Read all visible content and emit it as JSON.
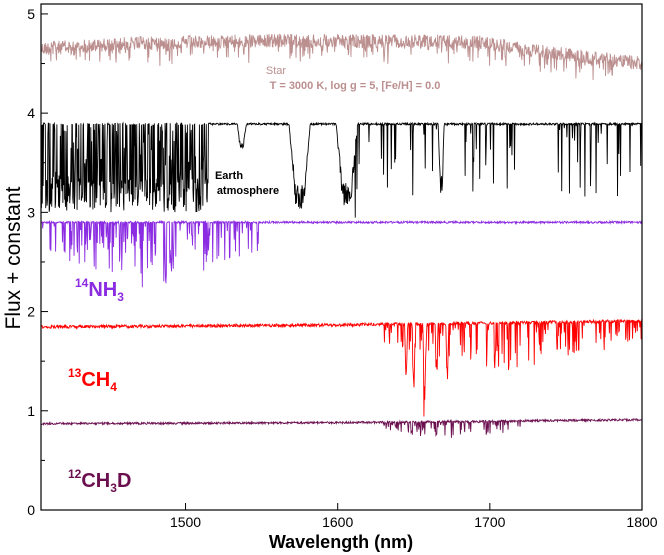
{
  "chart_data": {
    "type": "line",
    "title": "",
    "xlabel": "Wavelength (nm)",
    "ylabel": "Flux + constant",
    "xlim": [
      1405,
      1800
    ],
    "ylim": [
      0,
      5.1
    ],
    "x_ticks": [
      1500,
      1600,
      1700,
      1800
    ],
    "y_ticks": [
      0,
      1,
      2,
      3,
      4,
      5
    ],
    "grid": false,
    "series": [
      {
        "name": "Star",
        "label_line2": "T = 3000 K, log g = 5, [Fe/H] = 0.0",
        "color": "#bc8f8f",
        "baseline": [
          [
            1405,
            4.72
          ],
          [
            1460,
            4.77
          ],
          [
            1560,
            4.8
          ],
          [
            1690,
            4.79
          ],
          [
            1740,
            4.68
          ],
          [
            1800,
            4.57
          ]
        ],
        "spread": 0.14,
        "absorption": []
      },
      {
        "name": "Earth atmosphere",
        "label_top": "Earth",
        "label_bottom": "atmosphere",
        "color": "#000000",
        "baseline": [
          [
            1405,
            3.9
          ],
          [
            1800,
            3.9
          ]
        ],
        "spread": 0.02,
        "absorption": [
          {
            "center": 1575,
            "width": 7,
            "depth": 0.85
          },
          {
            "center": 1606,
            "width": 7,
            "depth": 0.85
          },
          {
            "center": 1537,
            "width": 3,
            "depth": 0.25
          },
          {
            "center": 1668,
            "width": 2,
            "depth": 0.7
          }
        ],
        "dense_band": {
          "from": 1405,
          "to": 1515,
          "floor": 3.0
        }
      },
      {
        "name": "14NH3",
        "label_prefix": "14",
        "label_main": "NH",
        "label_sub": "3",
        "color": "#8b2be2",
        "baseline": [
          [
            1405,
            2.91
          ],
          [
            1800,
            2.91
          ]
        ],
        "spread": 0.02,
        "absorption": [],
        "band": {
          "from": 1405,
          "to": 1550,
          "strength": 0.7
        }
      },
      {
        "name": "13CH4",
        "label_prefix": "13",
        "label_main": "CH",
        "label_sub": "4",
        "color": "#ff0000",
        "baseline": [
          [
            1405,
            1.86
          ],
          [
            1600,
            1.88
          ],
          [
            1800,
            1.92
          ]
        ],
        "spread": 0.03,
        "absorption": [
          {
            "center": 1657,
            "width": 1,
            "depth": 0.8
          },
          {
            "center": 1650,
            "width": 1,
            "depth": 0.65
          },
          {
            "center": 1645,
            "width": 1,
            "depth": 0.5
          },
          {
            "center": 1665,
            "width": 1,
            "depth": 0.5
          },
          {
            "center": 1672,
            "width": 1,
            "depth": 0.45
          }
        ],
        "band": {
          "from": 1630,
          "to": 1800,
          "strength": 0.5
        }
      },
      {
        "name": "12CH3D",
        "label_prefix": "12",
        "label_main": "CH",
        "label_sub": "3",
        "label_suffix": "D",
        "color": "#6b0f4f",
        "baseline": [
          [
            1405,
            0.88
          ],
          [
            1600,
            0.89
          ],
          [
            1800,
            0.92
          ]
        ],
        "spread": 0.02,
        "absorption": [],
        "band": {
          "from": 1630,
          "to": 1720,
          "strength": 0.2
        }
      }
    ]
  }
}
